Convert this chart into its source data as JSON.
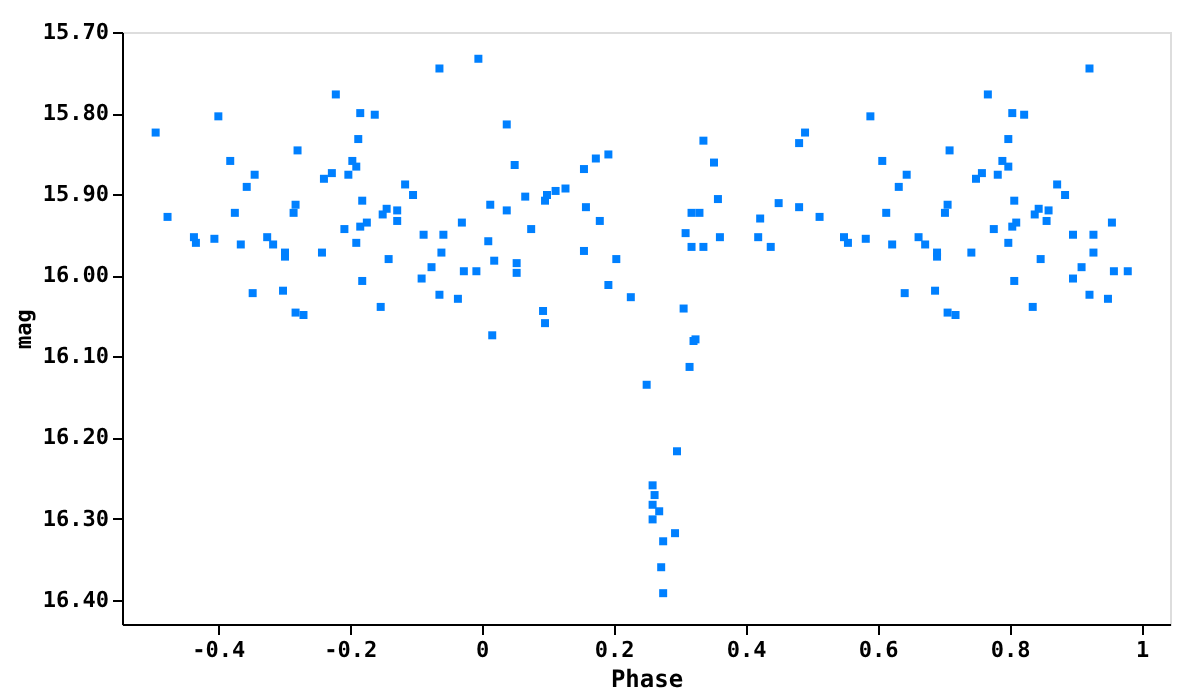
{
  "chart_data": {
    "type": "scatter",
    "xlabel": "Phase",
    "ylabel": "mag",
    "marker": "square",
    "grid": false,
    "xlim": [
      -0.545,
      1.043
    ],
    "ylim": [
      16.43,
      15.7
    ],
    "xticks": [
      -0.4,
      -0.2,
      0,
      0.2,
      0.4,
      0.6,
      0.8,
      1
    ],
    "yticks": [
      {
        "value": 15.7,
        "label": "15.70"
      },
      {
        "value": 15.8,
        "label": "15.80"
      },
      {
        "value": 15.9,
        "label": "15.90"
      },
      {
        "value": 16.0,
        "label": "16.00"
      },
      {
        "value": 16.1,
        "label": "16.10"
      },
      {
        "value": 16.2,
        "label": "16.20"
      },
      {
        "value": 16.3,
        "label": "16.30"
      },
      {
        "value": 16.4,
        "label": "16.40"
      }
    ],
    "series": [
      {
        "color": "#0080ff",
        "x": [
          -0.494,
          -0.476,
          -0.436,
          -0.433,
          -0.399,
          -0.381,
          -0.374,
          -0.365,
          -0.356,
          -0.347,
          -0.344,
          -0.405,
          -0.325,
          -0.316,
          -0.301,
          -0.298,
          -0.298,
          -0.285,
          -0.282,
          -0.282,
          -0.279,
          -0.27,
          -0.242,
          -0.239,
          -0.227,
          -0.221,
          -0.208,
          -0.202,
          -0.196,
          -0.19,
          -0.19,
          -0.187,
          -0.184,
          -0.184,
          -0.181,
          -0.181,
          -0.174,
          -0.162,
          -0.153,
          -0.15,
          -0.144,
          -0.141,
          -0.128,
          -0.128,
          -0.116,
          -0.104,
          -0.091,
          -0.088,
          -0.076,
          -0.064,
          -0.064,
          -0.061,
          -0.058,
          -0.036,
          -0.03,
          -0.027,
          -0.008,
          -0.005,
          0.01,
          0.013,
          0.016,
          0.019,
          0.038,
          0.038,
          0.05,
          0.053,
          0.053,
          0.066,
          0.075,
          0.093,
          0.096,
          0.096,
          0.099,
          0.112,
          0.127,
          0.155,
          0.155,
          0.158,
          0.173,
          0.179,
          0.192,
          0.192,
          0.204,
          0.226,
          0.306,
          0.309,
          0.318,
          0.318,
          0.321,
          0.324,
          0.33,
          0.336,
          0.336,
          0.352,
          0.358,
          0.361,
          0.419,
          0.422,
          0.438,
          0.45,
          0.481,
          0.481,
          0.49,
          0.512,
          0.549,
          0.555,
          0.582,
          0.589,
          0.607,
          0.613,
          0.622,
          0.632,
          0.641,
          0.644,
          0.662,
          0.672,
          0.687,
          0.69,
          0.69,
          0.702,
          0.706,
          0.706,
          0.709,
          0.718,
          0.742,
          0.749,
          0.758,
          0.767,
          0.776,
          0.782,
          0.789,
          0.798,
          0.798,
          0.798,
          0.804,
          0.804,
          0.807,
          0.807,
          0.81,
          0.822,
          0.835,
          0.838,
          0.844,
          0.847,
          0.856,
          0.859,
          0.872,
          0.884,
          0.896,
          0.896,
          0.909,
          0.921,
          0.921,
          0.927,
          0.927,
          0.949,
          0.955,
          0.958,
          0.979,
          0.25,
          0.315,
          0.296,
          0.259,
          0.262,
          0.259,
          0.269,
          0.259,
          0.293,
          0.275,
          0.272,
          0.275
        ],
        "values": [
          15.824,
          15.928,
          15.953,
          15.96,
          15.804,
          15.859,
          15.923,
          15.962,
          15.891,
          16.022,
          15.876,
          15.955,
          15.953,
          15.962,
          16.019,
          15.972,
          15.977,
          15.923,
          15.913,
          16.046,
          15.846,
          16.049,
          15.972,
          15.881,
          15.874,
          15.777,
          15.943,
          15.876,
          15.859,
          15.866,
          15.96,
          15.832,
          15.8,
          15.94,
          15.908,
          16.007,
          15.935,
          15.802,
          16.039,
          15.925,
          15.918,
          15.98,
          15.92,
          15.933,
          15.888,
          15.901,
          16.004,
          15.95,
          15.99,
          15.745,
          16.024,
          15.972,
          15.95,
          16.029,
          15.935,
          15.995,
          15.995,
          15.733,
          15.958,
          15.913,
          16.074,
          15.982,
          15.814,
          15.92,
          15.864,
          15.985,
          15.997,
          15.903,
          15.943,
          16.044,
          15.908,
          16.059,
          15.901,
          15.896,
          15.893,
          15.869,
          15.97,
          15.916,
          15.856,
          15.933,
          15.851,
          16.012,
          15.98,
          16.027,
          16.041,
          15.948,
          15.923,
          15.965,
          16.081,
          16.079,
          15.923,
          15.834,
          15.965,
          15.861,
          15.906,
          15.953,
          15.953,
          15.93,
          15.965,
          15.911,
          15.837,
          15.916,
          15.824,
          15.928,
          15.953,
          15.96,
          15.955,
          15.804,
          15.859,
          15.923,
          15.962,
          15.891,
          16.022,
          15.876,
          15.953,
          15.962,
          16.019,
          15.972,
          15.977,
          15.923,
          15.913,
          16.046,
          15.846,
          16.049,
          15.972,
          15.881,
          15.874,
          15.777,
          15.943,
          15.876,
          15.859,
          15.866,
          15.96,
          15.832,
          15.8,
          15.94,
          15.908,
          16.007,
          15.935,
          15.802,
          16.039,
          15.925,
          15.918,
          15.98,
          15.933,
          15.92,
          15.888,
          15.901,
          16.004,
          15.95,
          15.99,
          15.745,
          16.024,
          15.972,
          15.95,
          16.029,
          15.935,
          15.995,
          15.995,
          16.135,
          16.113,
          16.217,
          16.259,
          16.271,
          16.283,
          16.291,
          16.301,
          16.318,
          16.328,
          16.36,
          16.392
        ]
      }
    ]
  }
}
